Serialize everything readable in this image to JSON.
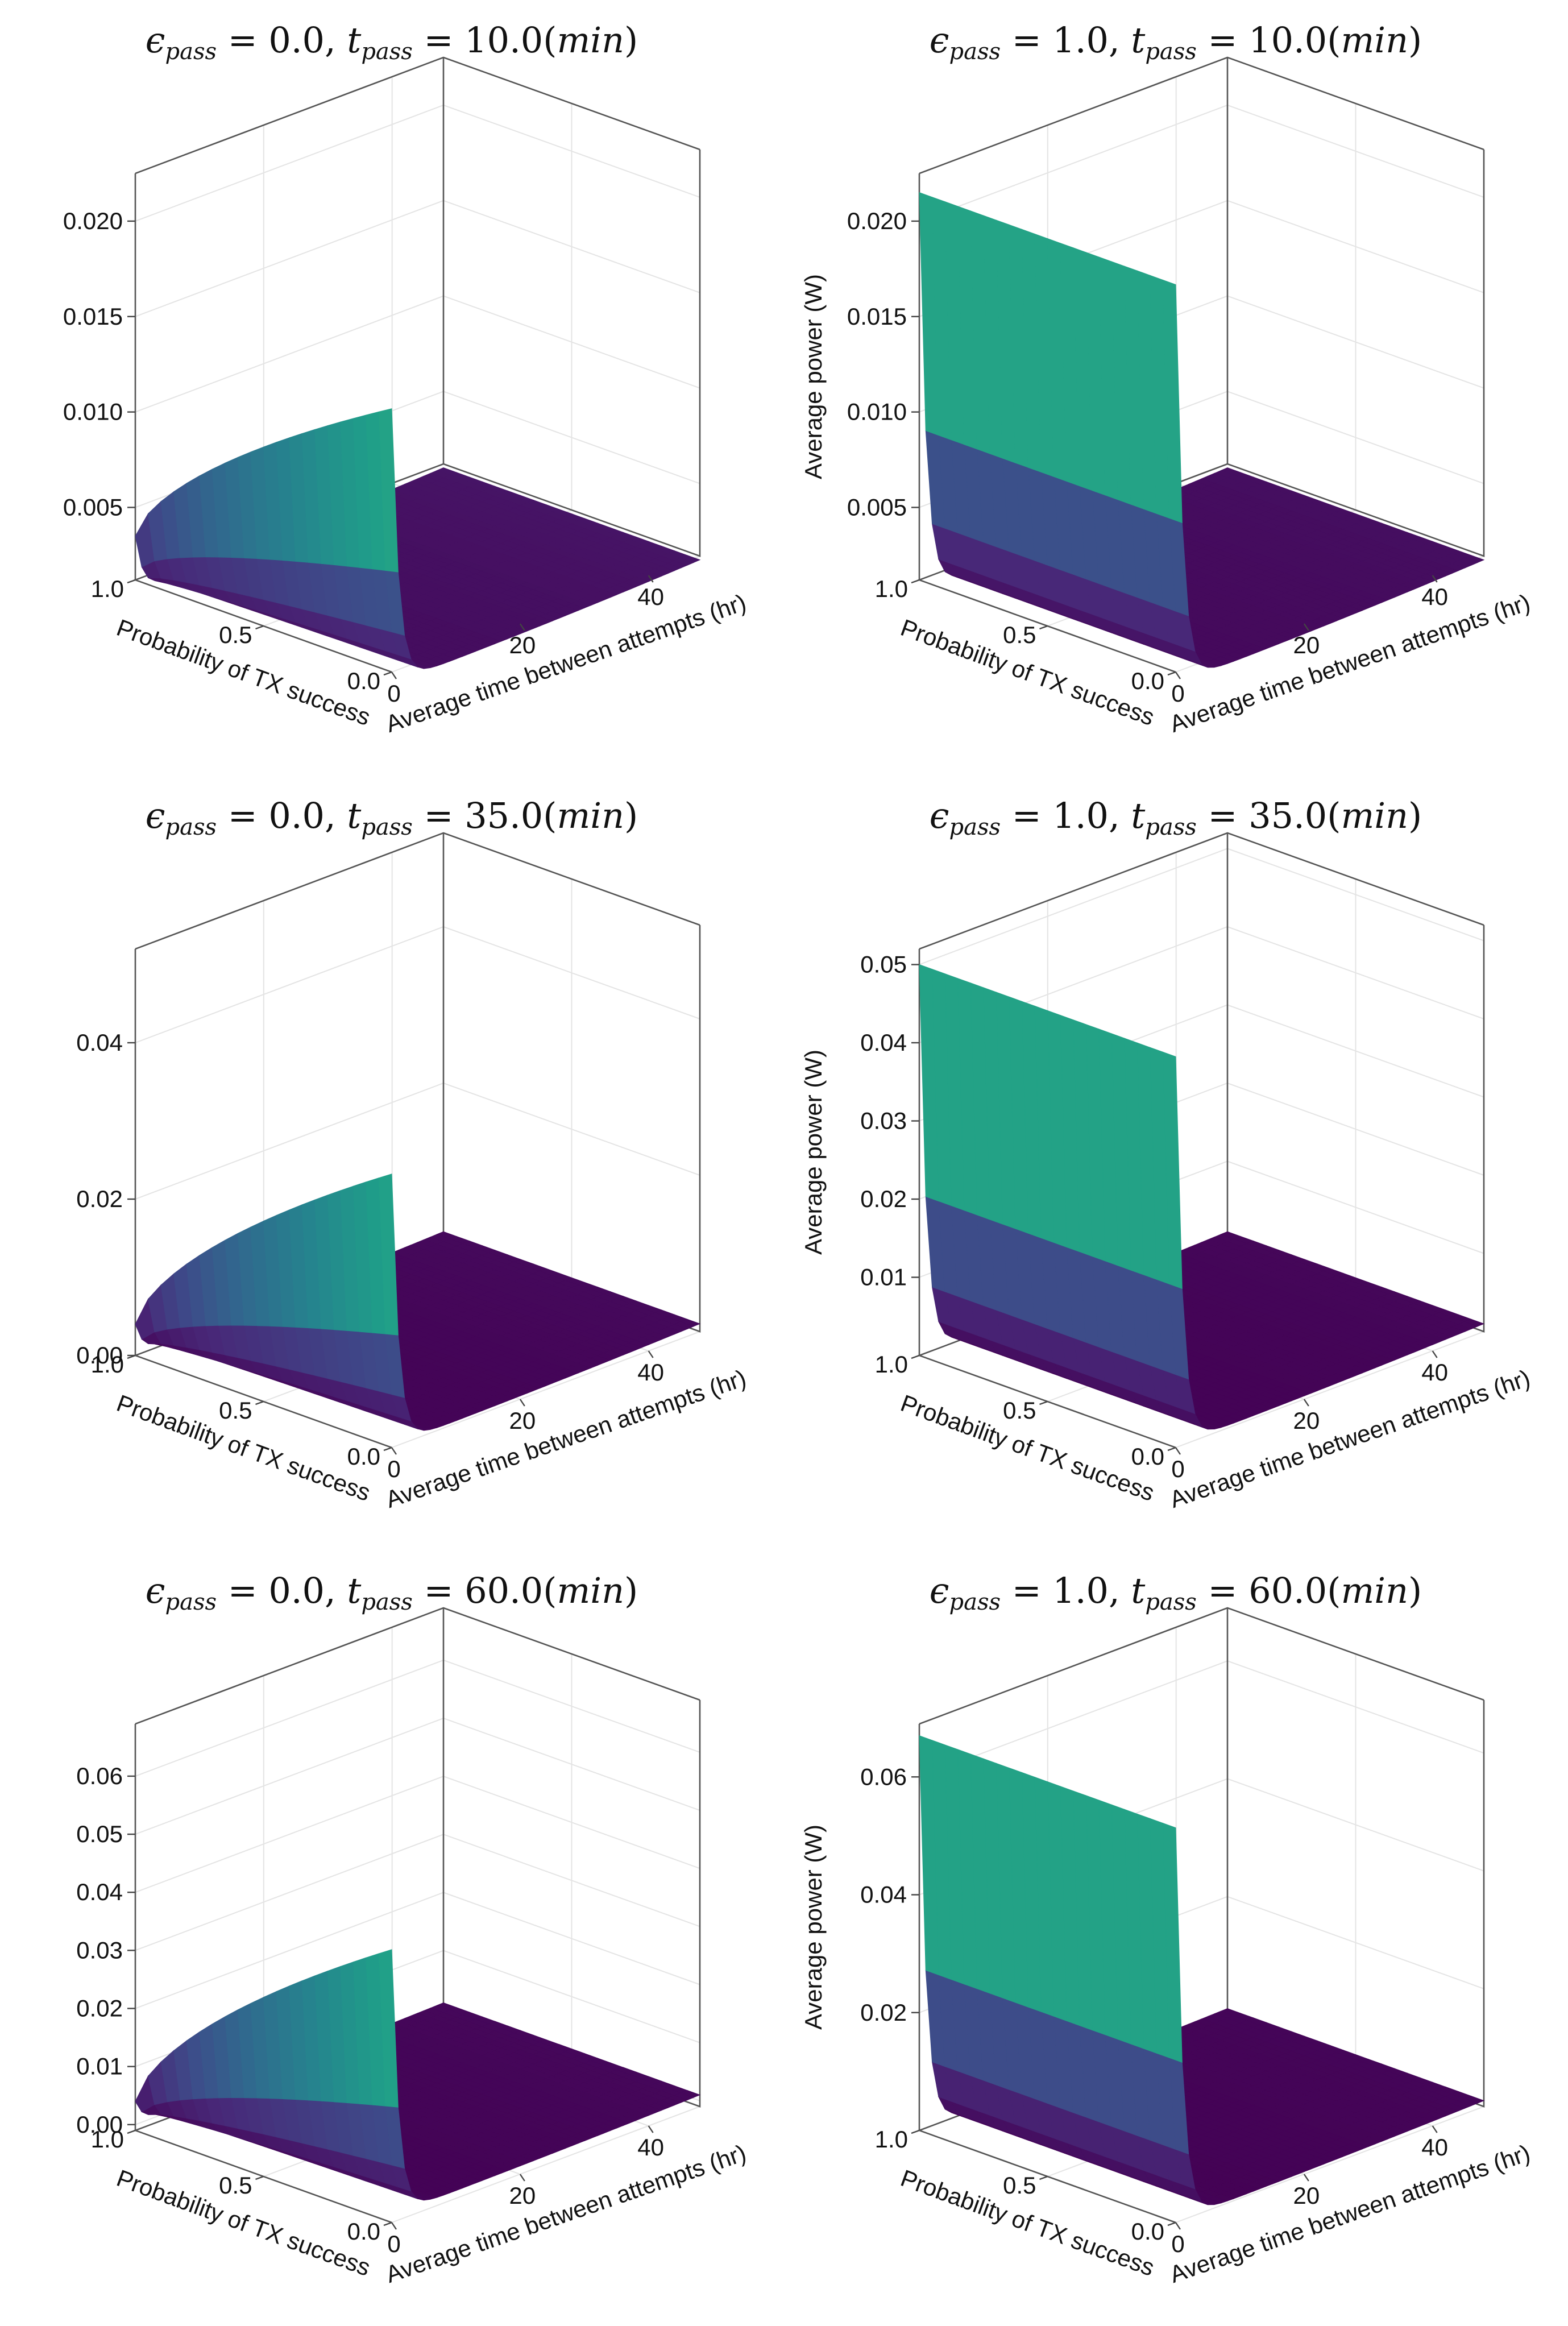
{
  "figure": {
    "layout": "3 rows x 2 columns grid of 3D surface plots"
  },
  "chart_data": [
    {
      "type": "surface",
      "title": "ε_pass = 0.0, t_pass = 10.0(min)",
      "title_parts": {
        "eps": "ϵ",
        "eps_sub": "pass",
        "eps_val": "0.0",
        "t": "t",
        "t_sub": "pass",
        "t_val": "10.0",
        "unit": "min"
      },
      "eps_pass": 0.0,
      "t_pass_min": 10.0,
      "xlabel": "Average time between attempts (hr)",
      "ylabel": "Probability of TX success",
      "zlabel": "",
      "x_ticks": [
        "0",
        "20",
        "40"
      ],
      "y_ticks": [
        "1.0",
        "0.5",
        "0.0"
      ],
      "z_ticks": [
        "0.005",
        "0.010",
        "0.015",
        "0.020"
      ],
      "xlim": [
        0,
        48
      ],
      "ylim": [
        0,
        1
      ],
      "zlim": [
        0.0012,
        0.0225
      ],
      "surface": {
        "z_at_x0_p1": 0.0035,
        "z_at_x0_p0": 0.015,
        "z_at_x48": 0.001,
        "z_min": 0.0006,
        "colormap": "viridis"
      }
    },
    {
      "type": "surface",
      "title": "ε_pass = 1.0, t_pass = 10.0(min)",
      "title_parts": {
        "eps": "ϵ",
        "eps_sub": "pass",
        "eps_val": "1.0",
        "t": "t",
        "t_sub": "pass",
        "t_val": "10.0",
        "unit": "min"
      },
      "eps_pass": 1.0,
      "t_pass_min": 10.0,
      "xlabel": "Average time between attempts (hr)",
      "ylabel": "Probability of TX success",
      "zlabel": "Average power (W)",
      "x_ticks": [
        "0",
        "20",
        "40"
      ],
      "y_ticks": [
        "1.0",
        "0.5",
        "0.0"
      ],
      "z_ticks": [
        "0.005",
        "0.010",
        "0.015",
        "0.020"
      ],
      "xlim": [
        0,
        48
      ],
      "ylim": [
        0,
        1
      ],
      "zlim": [
        0.0012,
        0.0225
      ],
      "surface": {
        "z_at_x0": 0.0215,
        "z_at_x48": 0.001,
        "z_min": 0.0006,
        "colormap": "viridis"
      }
    },
    {
      "type": "surface",
      "title": "ε_pass = 0.0, t_pass = 35.0(min)",
      "title_parts": {
        "eps": "ϵ",
        "eps_sub": "pass",
        "eps_val": "0.0",
        "t": "t",
        "t_sub": "pass",
        "t_val": "35.0",
        "unit": "min"
      },
      "eps_pass": 0.0,
      "t_pass_min": 35.0,
      "xlabel": "Average time between attempts (hr)",
      "ylabel": "Probability of TX success",
      "zlabel": "",
      "x_ticks": [
        "0",
        "20",
        "40"
      ],
      "y_ticks": [
        "1.0",
        "0.5",
        "0.0"
      ],
      "z_ticks": [
        "0.00",
        "0.02",
        "0.04"
      ],
      "xlim": [
        0,
        48
      ],
      "ylim": [
        0,
        1
      ],
      "zlim": [
        0.0,
        0.052
      ],
      "surface": {
        "z_at_x0_p1": 0.004,
        "z_at_x0_p0": 0.035,
        "z_at_x48": 0.001,
        "z_min": 0.0003,
        "colormap": "viridis"
      }
    },
    {
      "type": "surface",
      "title": "ε_pass = 1.0, t_pass = 35.0(min)",
      "title_parts": {
        "eps": "ϵ",
        "eps_sub": "pass",
        "eps_val": "1.0",
        "t": "t",
        "t_sub": "pass",
        "t_val": "35.0",
        "unit": "min"
      },
      "eps_pass": 1.0,
      "t_pass_min": 35.0,
      "xlabel": "Average time between attempts (hr)",
      "ylabel": "Probability of TX success",
      "zlabel": "Average power (W)",
      "x_ticks": [
        "0",
        "20",
        "40"
      ],
      "y_ticks": [
        "1.0",
        "0.5",
        "0.0"
      ],
      "z_ticks": [
        "0.01",
        "0.02",
        "0.03",
        "0.04",
        "0.05"
      ],
      "xlim": [
        0,
        48
      ],
      "ylim": [
        0,
        1
      ],
      "zlim": [
        0.0,
        0.052
      ],
      "surface": {
        "z_at_x0": 0.05,
        "z_at_x48": 0.001,
        "z_min": 0.0003,
        "colormap": "viridis"
      }
    },
    {
      "type": "surface",
      "title": "ε_pass = 0.0, t_pass = 60.0(min)",
      "title_parts": {
        "eps": "ϵ",
        "eps_sub": "pass",
        "eps_val": "0.0",
        "t": "t",
        "t_sub": "pass",
        "t_val": "60.0",
        "unit": "min"
      },
      "eps_pass": 0.0,
      "t_pass_min": 60.0,
      "xlabel": "Average time between attempts (hr)",
      "ylabel": "Probability of TX success",
      "zlabel": "",
      "x_ticks": [
        "0",
        "20",
        "40"
      ],
      "y_ticks": [
        "1.0",
        "0.5",
        "0.0"
      ],
      "z_ticks": [
        "0.00",
        "0.01",
        "0.02",
        "0.03",
        "0.04",
        "0.05",
        "0.06"
      ],
      "xlim": [
        0,
        48
      ],
      "ylim": [
        0,
        1
      ],
      "zlim": [
        -0.001,
        0.069
      ],
      "surface": {
        "z_at_x0_p1": 0.004,
        "z_at_x0_p0": 0.046,
        "z_at_x48": 0.001,
        "z_min": 0.0003,
        "colormap": "viridis"
      }
    },
    {
      "type": "surface",
      "title": "ε_pass = 1.0, t_pass = 60.0(min)",
      "title_parts": {
        "eps": "ϵ",
        "eps_sub": "pass",
        "eps_val": "1.0",
        "t": "t",
        "t_sub": "pass",
        "t_val": "60.0",
        "unit": "min"
      },
      "eps_pass": 1.0,
      "t_pass_min": 60.0,
      "xlabel": "Average time between attempts (hr)",
      "ylabel": "Probability of TX success",
      "zlabel": "Average power (W)",
      "x_ticks": [
        "0",
        "20",
        "40"
      ],
      "y_ticks": [
        "1.0",
        "0.5",
        "0.0"
      ],
      "z_ticks": [
        "0.02",
        "0.04",
        "0.06"
      ],
      "xlim": [
        0,
        48
      ],
      "ylim": [
        0,
        1
      ],
      "zlim": [
        0.0,
        0.069
      ],
      "surface": {
        "z_at_x0": 0.067,
        "z_at_x48": 0.001,
        "z_min": 0.0003,
        "colormap": "viridis"
      }
    }
  ]
}
